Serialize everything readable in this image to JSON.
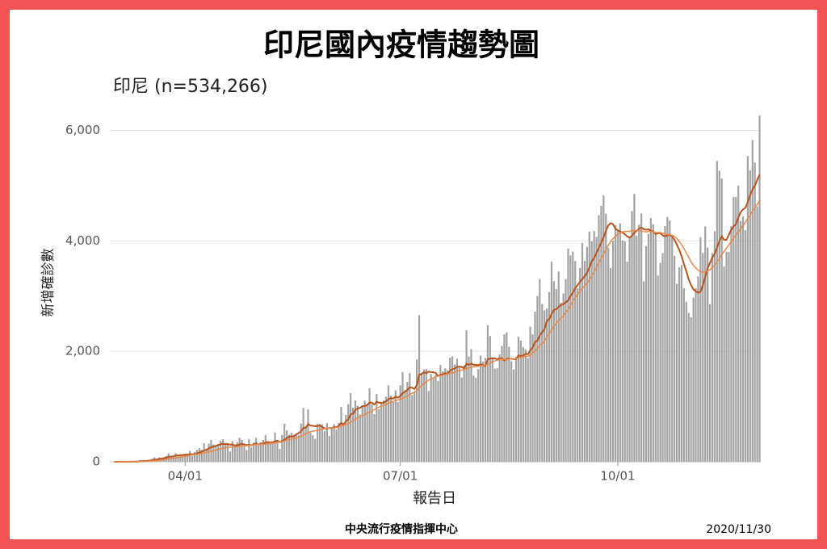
{
  "chart_data": {
    "type": "bar",
    "title": "印尼國內疫情趨勢圖",
    "subtitle": "印尼 (n=534,266)",
    "y_label": "新增確診數",
    "x_label": "報告日",
    "source": "中央流行疫情指揮中心",
    "date": "2020/11/30",
    "color": "#a3a3a3",
    "grid": true,
    "ylim": [
      0,
      6270
    ],
    "yticks": [
      0,
      {
        "value": 2000,
        "label": "2,000"
      },
      {
        "value": 4000,
        "label": "4,000"
      },
      {
        "value": 6000,
        "label": "6,000"
      }
    ],
    "categories": [
      null,
      null,
      null,
      null,
      null,
      null,
      null,
      null,
      null,
      null,
      null,
      null,
      null,
      null,
      null,
      null,
      null,
      null,
      null,
      null,
      null,
      null,
      null,
      null,
      null,
      null,
      null,
      null,
      null,
      null,
      "04/01",
      null,
      null,
      null,
      null,
      null,
      null,
      null,
      null,
      null,
      null,
      null,
      null,
      null,
      null,
      null,
      null,
      null,
      null,
      null,
      null,
      null,
      null,
      null,
      null,
      null,
      null,
      null,
      null,
      null,
      null,
      null,
      null,
      null,
      null,
      null,
      null,
      null,
      null,
      null,
      null,
      null,
      null,
      null,
      null,
      null,
      null,
      null,
      null,
      null,
      null,
      null,
      null,
      null,
      null,
      null,
      null,
      null,
      null,
      null,
      null,
      null,
      null,
      null,
      null,
      null,
      null,
      null,
      null,
      null,
      null,
      null,
      null,
      null,
      null,
      null,
      null,
      null,
      null,
      null,
      null,
      null,
      null,
      null,
      null,
      null,
      null,
      null,
      null,
      null,
      null,
      "07/01",
      null,
      null,
      null,
      null,
      null,
      null,
      null,
      null,
      null,
      null,
      null,
      null,
      null,
      null,
      null,
      null,
      null,
      null,
      null,
      null,
      null,
      null,
      null,
      null,
      null,
      null,
      null,
      null,
      null,
      null,
      null,
      null,
      null,
      null,
      null,
      null,
      null,
      null,
      null,
      null,
      null,
      null,
      null,
      null,
      null,
      null,
      null,
      null,
      null,
      null,
      null,
      null,
      null,
      null,
      null,
      null,
      null,
      null,
      null,
      null,
      null,
      null,
      null,
      null,
      null,
      null,
      null,
      null,
      null,
      null,
      null,
      null,
      null,
      null,
      null,
      null,
      null,
      null,
      null,
      null,
      null,
      null,
      null,
      null,
      null,
      null,
      null,
      null,
      null,
      null,
      null,
      "10/01",
      null,
      null,
      null,
      null,
      null,
      null,
      null,
      null,
      null,
      null,
      null,
      null,
      null,
      null,
      null,
      null,
      null,
      null,
      null,
      null,
      null,
      null,
      null,
      null,
      null,
      null,
      null,
      null,
      null,
      null,
      null,
      null,
      null,
      null,
      null,
      null,
      null,
      null,
      null,
      null,
      null,
      null,
      null,
      null,
      null,
      null,
      null,
      null,
      null,
      null,
      null,
      null,
      null,
      null,
      null,
      null,
      null,
      null,
      null,
      null
    ],
    "values": [
      2,
      0,
      0,
      2,
      0,
      2,
      0,
      0,
      2,
      15,
      7,
      35,
      27,
      21,
      17,
      38,
      55,
      82,
      60,
      81,
      64,
      65,
      106,
      153,
      109,
      103,
      153,
      109,
      130,
      114,
      149,
      113,
      196,
      106,
      181,
      218,
      247,
      218,
      337,
      219,
      330,
      399,
      316,
      282,
      297,
      380,
      407,
      325,
      327,
      185,
      375,
      283,
      357,
      436,
      396,
      275,
      214,
      415,
      260,
      347,
      433,
      292,
      349,
      395,
      484,
      367,
      338,
      336,
      533,
      387,
      233,
      484,
      689,
      568,
      490,
      529,
      489,
      496,
      486,
      693,
      973,
      634,
      949,
      526,
      479,
      415,
      686,
      687,
      678,
      557,
      700,
      467,
      609,
      684,
      585,
      703,
      993,
      672,
      847,
      1043,
      1241,
      979,
      1111,
      1014,
      857,
      1017,
      1106,
      1031,
      1331,
      1041,
      862,
      1226,
      954,
      1051,
      1113,
      1178,
      1385,
      1198,
      1082,
      1293,
      1082,
      1385,
      1624,
      1301,
      1447,
      1607,
      1209,
      1268,
      1853,
      2657,
      1611,
      1671,
      1681,
      1282,
      1591,
      1522,
      1574,
      1462,
      1752,
      1639,
      1693,
      1655,
      1882,
      1906,
      1761,
      1868,
      1703,
      1525,
      1748,
      2381,
      1904,
      2040,
      1560,
      1519,
      1679,
      1922,
      1815,
      1882,
      2473,
      2277,
      1893,
      1687,
      1693,
      1942,
      2098,
      2307,
      2345,
      2081,
      1821,
      1673,
      1902,
      2266,
      2197,
      2080,
      2037,
      1877,
      2447,
      2306,
      2719,
      3003,
      3308,
      2858,
      2743,
      2775,
      3075,
      3622,
      3269,
      3128,
      3444,
      2880,
      3046,
      3307,
      3861,
      3737,
      3806,
      3636,
      3141,
      3507,
      3963,
      3635,
      3891,
      4168,
      3989,
      4176,
      4071,
      4465,
      4634,
      4823,
      4494,
      3874,
      3509,
      4002,
      4284,
      4174,
      4317,
      4007,
      3992,
      3622,
      4056,
      4538,
      4850,
      4094,
      4294,
      4497,
      3267,
      3906,
      4127,
      4411,
      4301,
      4105,
      3373,
      3602,
      3779,
      4267,
      4432,
      4369,
      4070,
      3732,
      3222,
      3520,
      3565,
      3143,
      2897,
      2696,
      2618,
      2973,
      3143,
      3356,
      4065,
      3778,
      4262,
      3880,
      2853,
      3779,
      4173,
      5444,
      5272,
      5131,
      3535,
      3807,
      3798,
      4265,
      4798,
      4792,
      4998,
      4360,
      4442,
      4192,
      5534,
      5276,
      5828,
      5418,
      4617,
      6267
    ],
    "lines": [
      {
        "color": "#b9531d",
        "values": [
          0,
          0,
          0,
          1,
          1,
          1,
          1,
          1,
          1,
          3,
          4,
          9,
          12,
          15,
          17,
          22,
          28,
          36,
          43,
          52,
          57,
          66,
          75,
          89,
          93,
          100,
          113,
          117,
          121,
          124,
          128,
          130,
          138,
          136,
          141,
          151,
          170,
          184,
          204,
          219,
          240,
          267,
          276,
          288,
          305,
          316,
          325,
          321,
          323,
          310,
          313,
          296,
          299,
          314,
          326,
          312,
          301,
          307,
          297,
          315,
          332,
          311,
          331,
          330,
          350,
          360,
          351,
          355,
          369,
          382,
          357,
          376,
          401,
          430,
          454,
          461,
          461,
          498,
          520,
          549,
          616,
          617,
          682,
          658,
          651,
          641,
          650,
          658,
          629,
          604,
          600,
          612,
          611,
          628,
          626,
          656,
          705,
          674,
          735,
          767,
          859,
          872,
          939,
          968,
          976,
          1009,
          1010,
          1027,
          1072,
          1070,
          1036,
          1088,
          1070,
          1064,
          1073,
          1094,
          1130,
          1156,
          1143,
          1178,
          1161,
          1186,
          1248,
          1263,
          1300,
          1346,
          1342,
          1320,
          1387,
          1574,
          1588,
          1620,
          1606,
          1633,
          1625,
          1618,
          1610,
          1554,
          1574,
          1586,
          1603,
          1592,
          1644,
          1676,
          1687,
          1718,
          1722,
          1718,
          1691,
          1776,
          1754,
          1779,
          1755,
          1756,
          1750,
          1768,
          1750,
          1732,
          1854,
          1870,
          1873,
          1874,
          1859,
          1869,
          1879,
          1833,
          1868,
          1868,
          1864,
          1859,
          1861,
          1926,
          1912,
          1925,
          1956,
          1947,
          2020,
          2068,
          2167,
          2190,
          2288,
          2344,
          2400,
          2550,
          2584,
          2674,
          2750,
          2764,
          2802,
          2840,
          2853,
          2887,
          2920,
          3000,
          3060,
          3140,
          3200,
          3260,
          3310,
          3360,
          3420,
          3520,
          3630,
          3690,
          3790,
          3870,
          3970,
          4060,
          4180,
          4280,
          4320,
          4300,
          4220,
          4190,
          4170,
          4150,
          4120,
          4080,
          4060,
          4090,
          4150,
          4180,
          4220,
          4240,
          4210,
          4200,
          4210,
          4180,
          4170,
          4120,
          4140,
          4140,
          4100,
          4080,
          4100,
          4110,
          4080,
          4020,
          3930,
          3840,
          3720,
          3580,
          3450,
          3300,
          3200,
          3120,
          3090,
          3060,
          3080,
          3190,
          3350,
          3500,
          3600,
          3700,
          3760,
          3880,
          4000,
          4080,
          4020,
          4020,
          4110,
          4200,
          4260,
          4300,
          4420,
          4520,
          4570,
          4600,
          4700,
          4830,
          4930,
          5000,
          5100,
          5200
        ]
      },
      {
        "color": "#e8894a",
        "values": [
          0,
          0,
          0,
          0,
          0,
          1,
          1,
          1,
          1,
          2,
          2,
          5,
          6,
          8,
          9,
          12,
          15,
          19,
          23,
          28,
          32,
          38,
          44,
          52,
          58,
          64,
          72,
          79,
          86,
          92,
          100,
          108,
          118,
          126,
          132,
          138,
          145,
          151,
          160,
          170,
          180,
          190,
          200,
          212,
          222,
          234,
          246,
          258,
          264,
          266,
          268,
          270,
          275,
          282,
          288,
          290,
          292,
          296,
          300,
          306,
          312,
          314,
          316,
          318,
          322,
          328,
          335,
          340,
          347,
          356,
          362,
          366,
          376,
          390,
          400,
          410,
          418,
          430,
          445,
          460,
          488,
          505,
          530,
          545,
          555,
          560,
          568,
          578,
          590,
          600,
          605,
          610,
          612,
          615,
          620,
          632,
          648,
          660,
          670,
          690,
          720,
          745,
          770,
          800,
          820,
          840,
          860,
          880,
          900,
          920,
          945,
          970,
          990,
          1010,
          1025,
          1040,
          1060,
          1080,
          1095,
          1110,
          1120,
          1135,
          1150,
          1170,
          1190,
          1220,
          1240,
          1260,
          1290,
          1340,
          1380,
          1420,
          1450,
          1480,
          1500,
          1520,
          1540,
          1550,
          1560,
          1570,
          1580,
          1590,
          1600,
          1610,
          1620,
          1640,
          1650,
          1660,
          1670,
          1690,
          1700,
          1715,
          1720,
          1725,
          1730,
          1740,
          1745,
          1750,
          1760,
          1790,
          1810,
          1830,
          1840,
          1850,
          1860,
          1850,
          1855,
          1860,
          1862,
          1864,
          1866,
          1880,
          1890,
          1900,
          1910,
          1910,
          1930,
          1960,
          2010,
          2050,
          2100,
          2140,
          2180,
          2260,
          2320,
          2390,
          2450,
          2510,
          2560,
          2600,
          2650,
          2700,
          2760,
          2830,
          2900,
          2970,
          3030,
          3090,
          3140,
          3190,
          3240,
          3300,
          3370,
          3440,
          3520,
          3600,
          3680,
          3760,
          3840,
          3920,
          3990,
          4040,
          4080,
          4120,
          4140,
          4160,
          4170,
          4170,
          4170,
          4180,
          4190,
          4190,
          4190,
          4180,
          4170,
          4160,
          4170,
          4170,
          4160,
          4150,
          4150,
          4150,
          4140,
          4130,
          4120,
          4110,
          4100,
          4080,
          4040,
          3990,
          3930,
          3860,
          3780,
          3700,
          3620,
          3560,
          3510,
          3470,
          3440,
          3430,
          3440,
          3460,
          3480,
          3520,
          3560,
          3620,
          3680,
          3750,
          3810,
          3870,
          3930,
          3990,
          4050,
          4100,
          4160,
          4220,
          4280,
          4340,
          4400,
          4470,
          4540,
          4600,
          4660,
          4730
        ]
      }
    ]
  }
}
